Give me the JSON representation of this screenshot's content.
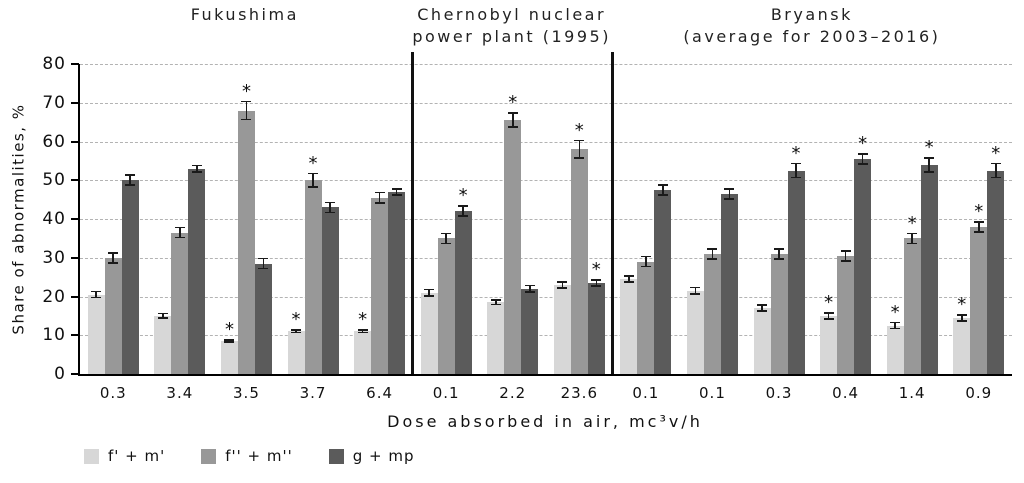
{
  "chart_data": {
    "type": "bar",
    "title": "",
    "ylabel": "Share of abnormalities, %",
    "xlabel": "Dose absorbed in air, mc³v/h",
    "ylim": [
      0,
      80
    ],
    "yticks": [
      0,
      10,
      20,
      30,
      40,
      50,
      60,
      70,
      80
    ],
    "grid": "dashed-horizontal",
    "legend_position": "bottom-left",
    "significance_marker": "*",
    "series_names": [
      "f' + m'",
      "f'' + m''",
      "g + mp"
    ],
    "series_colors": [
      "#d7d7d7",
      "#989898",
      "#5b5b5b"
    ],
    "error_color": "#1a1a1a",
    "sections": [
      {
        "title_lines": [
          "Fukushima"
        ],
        "groups": [
          {
            "x": "0.3",
            "values": [
              20.5,
              30,
              50
            ],
            "errors": [
              1,
              1.5,
              1.5
            ],
            "sig": [
              false,
              false,
              false
            ]
          },
          {
            "x": "3.4",
            "values": [
              15,
              36.5,
              53
            ],
            "errors": [
              0.8,
              1.5,
              1
            ],
            "sig": [
              false,
              false,
              false
            ]
          },
          {
            "x": "3.5",
            "values": [
              8.5,
              68,
              28.5
            ],
            "errors": [
              0.5,
              2.5,
              1.5
            ],
            "sig": [
              true,
              true,
              false
            ]
          },
          {
            "x": "3.7",
            "values": [
              11,
              50,
              43
            ],
            "errors": [
              0.5,
              2,
              1.5
            ],
            "sig": [
              true,
              true,
              false
            ]
          },
          {
            "x": "6.4",
            "values": [
              11,
              45.5,
              47
            ],
            "errors": [
              0.5,
              1.5,
              1
            ],
            "sig": [
              true,
              false,
              false
            ]
          }
        ]
      },
      {
        "title_lines": [
          "Chernobyl nuclear",
          "power plant (1995)"
        ],
        "groups": [
          {
            "x": "0.1",
            "values": [
              21,
              35,
              42
            ],
            "errors": [
              1,
              1.5,
              1.5
            ],
            "sig": [
              false,
              false,
              true
            ]
          },
          {
            "x": "2.2",
            "values": [
              18.5,
              65.5,
              22
            ],
            "errors": [
              0.8,
              2,
              1
            ],
            "sig": [
              false,
              true,
              false
            ]
          },
          {
            "x": "23.6",
            "values": [
              23,
              58,
              23.5
            ],
            "errors": [
              1,
              2.5,
              1
            ],
            "sig": [
              false,
              true,
              true
            ]
          }
        ]
      },
      {
        "title_lines": [
          "Bryansk",
          "(average for 2003–2016)"
        ],
        "groups": [
          {
            "x": "0.1",
            "values": [
              24.5,
              29,
              47.5
            ],
            "errors": [
              1,
              1.5,
              1.5
            ],
            "sig": [
              false,
              false,
              false
            ]
          },
          {
            "x": "0.1",
            "values": [
              21.5,
              31,
              46.5
            ],
            "errors": [
              1,
              1.5,
              1.5
            ],
            "sig": [
              false,
              false,
              false
            ]
          },
          {
            "x": "0.3",
            "values": [
              17,
              31,
              52.5
            ],
            "errors": [
              1,
              1.5,
              2
            ],
            "sig": [
              false,
              false,
              true
            ]
          },
          {
            "x": "0.4",
            "values": [
              15,
              30.5,
              55.5
            ],
            "errors": [
              1,
              1.5,
              1.5
            ],
            "sig": [
              true,
              false,
              true
            ]
          },
          {
            "x": "1.4",
            "values": [
              12.5,
              35,
              54
            ],
            "errors": [
              1,
              1.5,
              2
            ],
            "sig": [
              true,
              true,
              true
            ]
          },
          {
            "x": "0.9",
            "values": [
              14.5,
              38,
              52.5
            ],
            "errors": [
              1,
              1.5,
              2
            ],
            "sig": [
              true,
              true,
              true
            ]
          }
        ]
      }
    ]
  }
}
